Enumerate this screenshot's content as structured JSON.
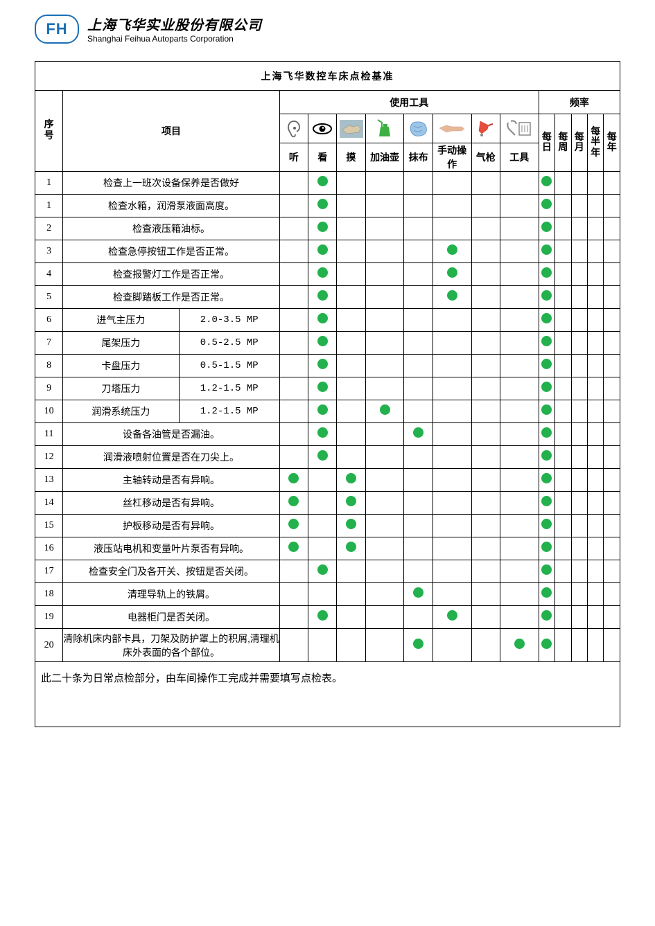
{
  "logo_text": "FH",
  "company_cn": "上海飞华实业股份有限公司",
  "company_en": "Shanghai Feihua Autoparts Corporation",
  "title": "上海飞华数控车床点检基准",
  "hdr_seq": "序号",
  "hdr_item": "项目",
  "hdr_tools": "使用工具",
  "hdr_freq": "频率",
  "tools": [
    "听",
    "看",
    "摸",
    "加油壶",
    "抹布",
    "手动操作",
    "气枪",
    "工具"
  ],
  "freqs": [
    "每日",
    "每周",
    "每月",
    "每半年",
    "每年"
  ],
  "dot_color": "#22b14c",
  "rows": [
    {
      "seq": "1",
      "item": "检查上一班次设备保养是否做好",
      "spec": "",
      "t": [
        0,
        1,
        0,
        0,
        0,
        0,
        0,
        0
      ],
      "f": [
        1,
        0,
        0,
        0,
        0
      ]
    },
    {
      "seq": "1",
      "item": "检查水箱，润滑泵液面高度。",
      "spec": "",
      "t": [
        0,
        1,
        0,
        0,
        0,
        0,
        0,
        0
      ],
      "f": [
        1,
        0,
        0,
        0,
        0
      ]
    },
    {
      "seq": "2",
      "item": "检查液压箱油标。",
      "spec": "",
      "t": [
        0,
        1,
        0,
        0,
        0,
        0,
        0,
        0
      ],
      "f": [
        1,
        0,
        0,
        0,
        0
      ]
    },
    {
      "seq": "3",
      "item": "检查急停按钮工作是否正常。",
      "spec": "",
      "t": [
        0,
        1,
        0,
        0,
        0,
        1,
        0,
        0
      ],
      "f": [
        1,
        0,
        0,
        0,
        0
      ]
    },
    {
      "seq": "4",
      "item": "检查报警灯工作是否正常。",
      "spec": "",
      "t": [
        0,
        1,
        0,
        0,
        0,
        1,
        0,
        0
      ],
      "f": [
        1,
        0,
        0,
        0,
        0
      ]
    },
    {
      "seq": "5",
      "item": "检查脚踏板工作是否正常。",
      "spec": "",
      "t": [
        0,
        1,
        0,
        0,
        0,
        1,
        0,
        0
      ],
      "f": [
        1,
        0,
        0,
        0,
        0
      ]
    },
    {
      "seq": "6",
      "item": "进气主压力",
      "spec": "2.0-3.5 MP",
      "t": [
        0,
        1,
        0,
        0,
        0,
        0,
        0,
        0
      ],
      "f": [
        1,
        0,
        0,
        0,
        0
      ]
    },
    {
      "seq": "7",
      "item": "尾架压力",
      "spec": "0.5-2.5 MP",
      "t": [
        0,
        1,
        0,
        0,
        0,
        0,
        0,
        0
      ],
      "f": [
        1,
        0,
        0,
        0,
        0
      ]
    },
    {
      "seq": "8",
      "item": "卡盘压力",
      "spec": "0.5-1.5 MP",
      "t": [
        0,
        1,
        0,
        0,
        0,
        0,
        0,
        0
      ],
      "f": [
        1,
        0,
        0,
        0,
        0
      ]
    },
    {
      "seq": "9",
      "item": "刀塔压力",
      "spec": "1.2-1.5 MP",
      "t": [
        0,
        1,
        0,
        0,
        0,
        0,
        0,
        0
      ],
      "f": [
        1,
        0,
        0,
        0,
        0
      ]
    },
    {
      "seq": "10",
      "item": "润滑系统压力",
      "spec": "1.2-1.5 MP",
      "t": [
        0,
        1,
        0,
        1,
        0,
        0,
        0,
        0
      ],
      "f": [
        1,
        0,
        0,
        0,
        0
      ]
    },
    {
      "seq": "11",
      "item": "设备各油管是否漏油。",
      "spec": "",
      "t": [
        0,
        1,
        0,
        0,
        1,
        0,
        0,
        0
      ],
      "f": [
        1,
        0,
        0,
        0,
        0
      ]
    },
    {
      "seq": "12",
      "item": "润滑液喷射位置是否在刀尖上。",
      "spec": "",
      "t": [
        0,
        1,
        0,
        0,
        0,
        0,
        0,
        0
      ],
      "f": [
        1,
        0,
        0,
        0,
        0
      ]
    },
    {
      "seq": "13",
      "item": "主轴转动是否有异响。",
      "spec": "",
      "t": [
        1,
        0,
        1,
        0,
        0,
        0,
        0,
        0
      ],
      "f": [
        1,
        0,
        0,
        0,
        0
      ]
    },
    {
      "seq": "14",
      "item": "丝杠移动是否有异响。",
      "spec": "",
      "t": [
        1,
        0,
        1,
        0,
        0,
        0,
        0,
        0
      ],
      "f": [
        1,
        0,
        0,
        0,
        0
      ]
    },
    {
      "seq": "15",
      "item": "护板移动是否有异响。",
      "spec": "",
      "t": [
        1,
        0,
        1,
        0,
        0,
        0,
        0,
        0
      ],
      "f": [
        1,
        0,
        0,
        0,
        0
      ]
    },
    {
      "seq": "16",
      "item": "液压站电机和变量叶片泵否有异响。",
      "spec": "",
      "t": [
        1,
        0,
        1,
        0,
        0,
        0,
        0,
        0
      ],
      "f": [
        1,
        0,
        0,
        0,
        0
      ]
    },
    {
      "seq": "17",
      "item": "检查安全门及各开关、按钮是否关闭。",
      "spec": "",
      "t": [
        0,
        1,
        0,
        0,
        0,
        0,
        0,
        0
      ],
      "f": [
        1,
        0,
        0,
        0,
        0
      ]
    },
    {
      "seq": "18",
      "item": "清理导轨上的铁屑。",
      "spec": "",
      "t": [
        0,
        0,
        0,
        0,
        1,
        0,
        0,
        0
      ],
      "f": [
        1,
        0,
        0,
        0,
        0
      ]
    },
    {
      "seq": "19",
      "item": "电器柜门是否关闭。",
      "spec": "",
      "t": [
        0,
        1,
        0,
        0,
        0,
        1,
        0,
        0
      ],
      "f": [
        1,
        0,
        0,
        0,
        0
      ]
    },
    {
      "seq": "20",
      "item": "清除机床内部卡具，刀架及防护罩上的积屑,清理机床外表面的各个部位。",
      "spec": "",
      "t": [
        0,
        0,
        0,
        0,
        1,
        0,
        0,
        1
      ],
      "f": [
        1,
        0,
        0,
        0,
        0
      ]
    }
  ],
  "footnote": "此二十条为日常点检部分，由车间操作工完成并需要填写点检表。"
}
